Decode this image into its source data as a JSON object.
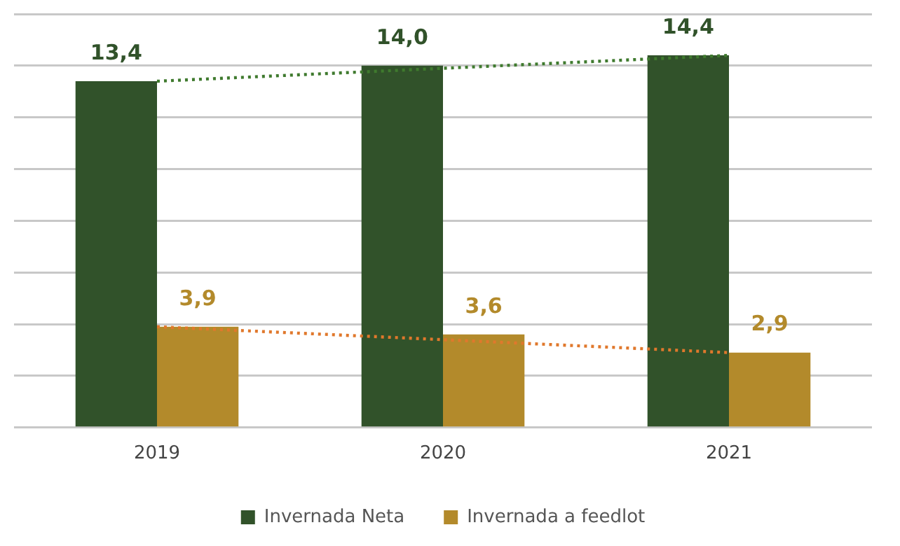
{
  "chart_data": {
    "type": "bar",
    "categories": [
      "2019",
      "2020",
      "2021"
    ],
    "series": [
      {
        "name": "Invernada Neta",
        "color": "#31522a",
        "values": [
          13.4,
          14.0,
          14.4
        ],
        "value_labels": [
          "13,4",
          "14,0",
          "14,4"
        ]
      },
      {
        "name": "Invernada a feedlot",
        "color": "#b38a2b",
        "values": [
          3.9,
          3.6,
          2.9
        ],
        "value_labels": [
          "3,9",
          "3,6",
          "2,9"
        ]
      },
      {
        "type": "line",
        "values": [
          13.4,
          13.9,
          14.4
        ],
        "color": "#3f7a2e",
        "line_style": "dotted",
        "marker": "none"
      },
      {
        "type": "line",
        "values": [
          3.9,
          3.4,
          2.9
        ],
        "color": "#e0782c",
        "line_style": "dotted",
        "marker": "none"
      }
    ],
    "tick_labels": "x",
    "grid": "y",
    "legend": "bottom"
  }
}
